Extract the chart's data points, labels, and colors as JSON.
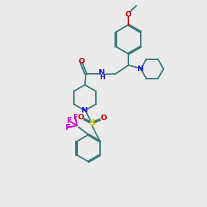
{
  "bg_color": "#ebebeb",
  "bond_color": "#3a7a7a",
  "bond_width": 1.5,
  "N_color": "#2020cc",
  "O_color": "#cc0000",
  "S_color": "#cccc00",
  "F_color": "#cc00cc",
  "figsize": [
    3.0,
    3.0
  ],
  "dpi": 100,
  "xlim": [
    0,
    10
  ],
  "ylim": [
    0,
    10
  ]
}
